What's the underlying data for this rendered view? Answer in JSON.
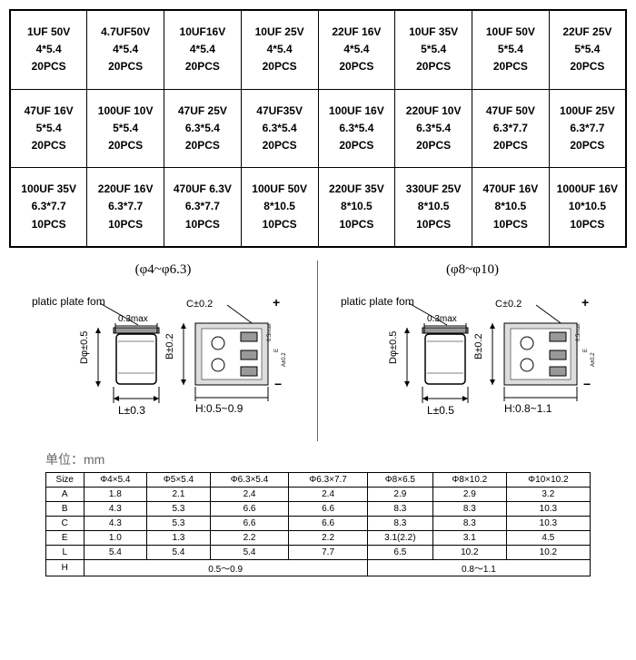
{
  "top_table": {
    "rows": [
      [
        {
          "spec": "1UF 50V",
          "dims": "4*5.4",
          "qty": "20PCS"
        },
        {
          "spec": "4.7UF50V",
          "dims": "4*5.4",
          "qty": "20PCS"
        },
        {
          "spec": "10UF16V",
          "dims": "4*5.4",
          "qty": "20PCS"
        },
        {
          "spec": "10UF 25V",
          "dims": "4*5.4",
          "qty": "20PCS"
        },
        {
          "spec": "22UF 16V",
          "dims": "4*5.4",
          "qty": "20PCS"
        },
        {
          "spec": "10UF 35V",
          "dims": "5*5.4",
          "qty": "20PCS"
        },
        {
          "spec": "10UF 50V",
          "dims": "5*5.4",
          "qty": "20PCS"
        },
        {
          "spec": "22UF 25V",
          "dims": "5*5.4",
          "qty": "20PCS"
        }
      ],
      [
        {
          "spec": "47UF 16V",
          "dims": "5*5.4",
          "qty": "20PCS"
        },
        {
          "spec": "100UF 10V",
          "dims": "5*5.4",
          "qty": "20PCS"
        },
        {
          "spec": "47UF 25V",
          "dims": "6.3*5.4",
          "qty": "20PCS"
        },
        {
          "spec": "47UF35V",
          "dims": "6.3*5.4",
          "qty": "20PCS"
        },
        {
          "spec": "100UF 16V",
          "dims": "6.3*5.4",
          "qty": "20PCS"
        },
        {
          "spec": "220UF 10V",
          "dims": "6.3*5.4",
          "qty": "20PCS"
        },
        {
          "spec": "47UF 50V",
          "dims": "6.3*7.7",
          "qty": "20PCS"
        },
        {
          "spec": "100UF 25V",
          "dims": "6.3*7.7",
          "qty": "20PCS"
        }
      ],
      [
        {
          "spec": "100UF 35V",
          "dims": "6.3*7.7",
          "qty": "10PCS"
        },
        {
          "spec": "220UF 16V",
          "dims": "6.3*7.7",
          "qty": "10PCS"
        },
        {
          "spec": "470UF 6.3V",
          "dims": "6.3*7.7",
          "qty": "10PCS"
        },
        {
          "spec": "100UF 50V",
          "dims": "8*10.5",
          "qty": "10PCS"
        },
        {
          "spec": "220UF 35V",
          "dims": "8*10.5",
          "qty": "10PCS"
        },
        {
          "spec": "330UF 25V",
          "dims": "8*10.5",
          "qty": "10PCS"
        },
        {
          "spec": "470UF 16V",
          "dims": "8*10.5",
          "qty": "10PCS"
        },
        {
          "spec": "1000UF 16V",
          "dims": "10*10.5",
          "qty": "10PCS"
        }
      ]
    ]
  },
  "diagrams": {
    "left_heading": "(φ4~φ6.3)",
    "right_heading": "(φ8~φ10)",
    "plate_label": "platic plate fom",
    "dim_03max": "0.3max",
    "dim_L_left": "L±0.3",
    "dim_L_right": "L±0.5",
    "dim_D": "Dφ±0.5",
    "dim_B": "B±0.2",
    "dim_C": "C±0.2",
    "dim_H_left": "H:0.5~0.9",
    "dim_H_right": "H:0.8~1.1",
    "dim_E": "E",
    "plus": "+",
    "minus": "−",
    "pad_small": "A±0.2",
    "pad_small2": "0.5max"
  },
  "unit_label": "单位：mm",
  "dim_table": {
    "header": [
      "Size",
      "Φ4×5.4",
      "Φ5×5.4",
      "Φ6.3×5.4",
      "Φ6.3×7.7",
      "Φ8×6.5",
      "Φ8×10.2",
      "Φ10×10.2"
    ],
    "rows": [
      [
        "A",
        "1.8",
        "2.1",
        "2.4",
        "2.4",
        "2.9",
        "2.9",
        "3.2"
      ],
      [
        "B",
        "4.3",
        "5.3",
        "6.6",
        "6.6",
        "8.3",
        "8.3",
        "10.3"
      ],
      [
        "C",
        "4.3",
        "5.3",
        "6.6",
        "6.6",
        "8.3",
        "8.3",
        "10.3"
      ],
      [
        "E",
        "1.0",
        "1.3",
        "2.2",
        "2.2",
        "3.1(2.2)",
        "3.1",
        "4.5"
      ],
      [
        "L",
        "5.4",
        "5.4",
        "5.4",
        "7.7",
        "6.5",
        "10.2",
        "10.2"
      ]
    ],
    "h_row_label": "H",
    "h_span1": "0.5～0.9",
    "h_span2": "0.8～1.1"
  }
}
